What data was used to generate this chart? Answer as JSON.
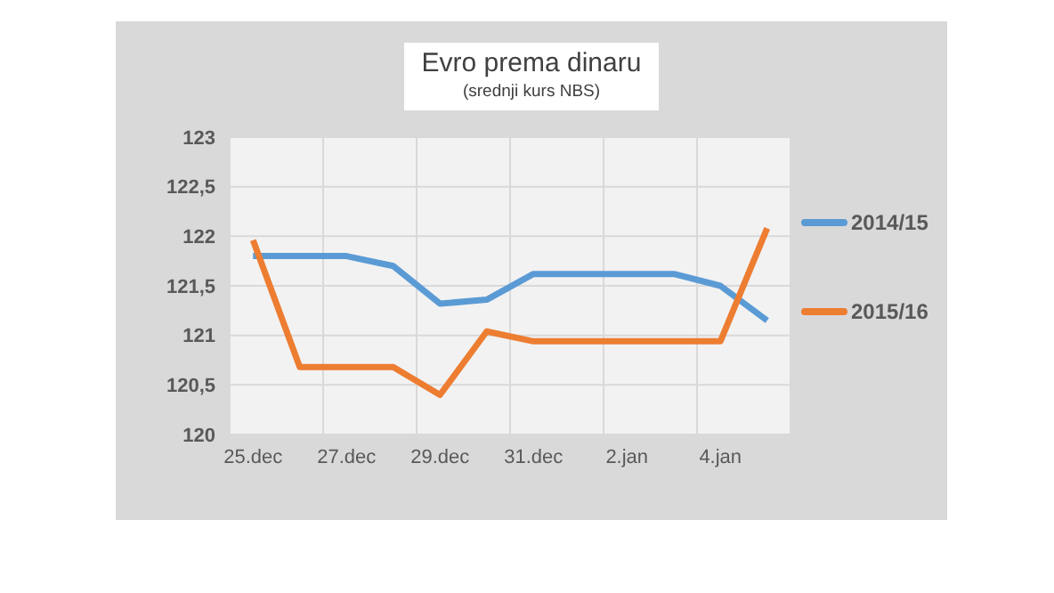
{
  "chart_data": {
    "type": "line",
    "title": "Evro prema dinaru",
    "subtitle": "(srednji kurs NBS)",
    "categories": [
      "25.dec",
      null,
      "27.dec",
      null,
      "29.dec",
      null,
      "31.dec",
      null,
      "2.jan",
      null,
      "4.jan",
      null
    ],
    "series": [
      {
        "name": "2014/15",
        "color": "#5b9bd5",
        "values": [
          121.8,
          121.8,
          121.8,
          121.7,
          121.32,
          121.36,
          121.62,
          121.62,
          121.62,
          121.62,
          121.5,
          121.15
        ]
      },
      {
        "name": "2015/16",
        "color": "#ed7d31",
        "values": [
          121.96,
          120.68,
          120.68,
          120.68,
          120.4,
          121.04,
          120.94,
          120.94,
          120.94,
          120.94,
          120.94,
          122.08
        ]
      }
    ],
    "ylim": [
      120,
      123
    ],
    "yticks": [
      120,
      {
        "value": 120.5,
        "label": "120,5"
      },
      121,
      {
        "value": 121.5,
        "label": "121,5"
      },
      122,
      {
        "value": 122.5,
        "label": "122,5"
      },
      123
    ],
    "grid": true,
    "legend": "right",
    "marker": "none",
    "line_style": "solid"
  }
}
